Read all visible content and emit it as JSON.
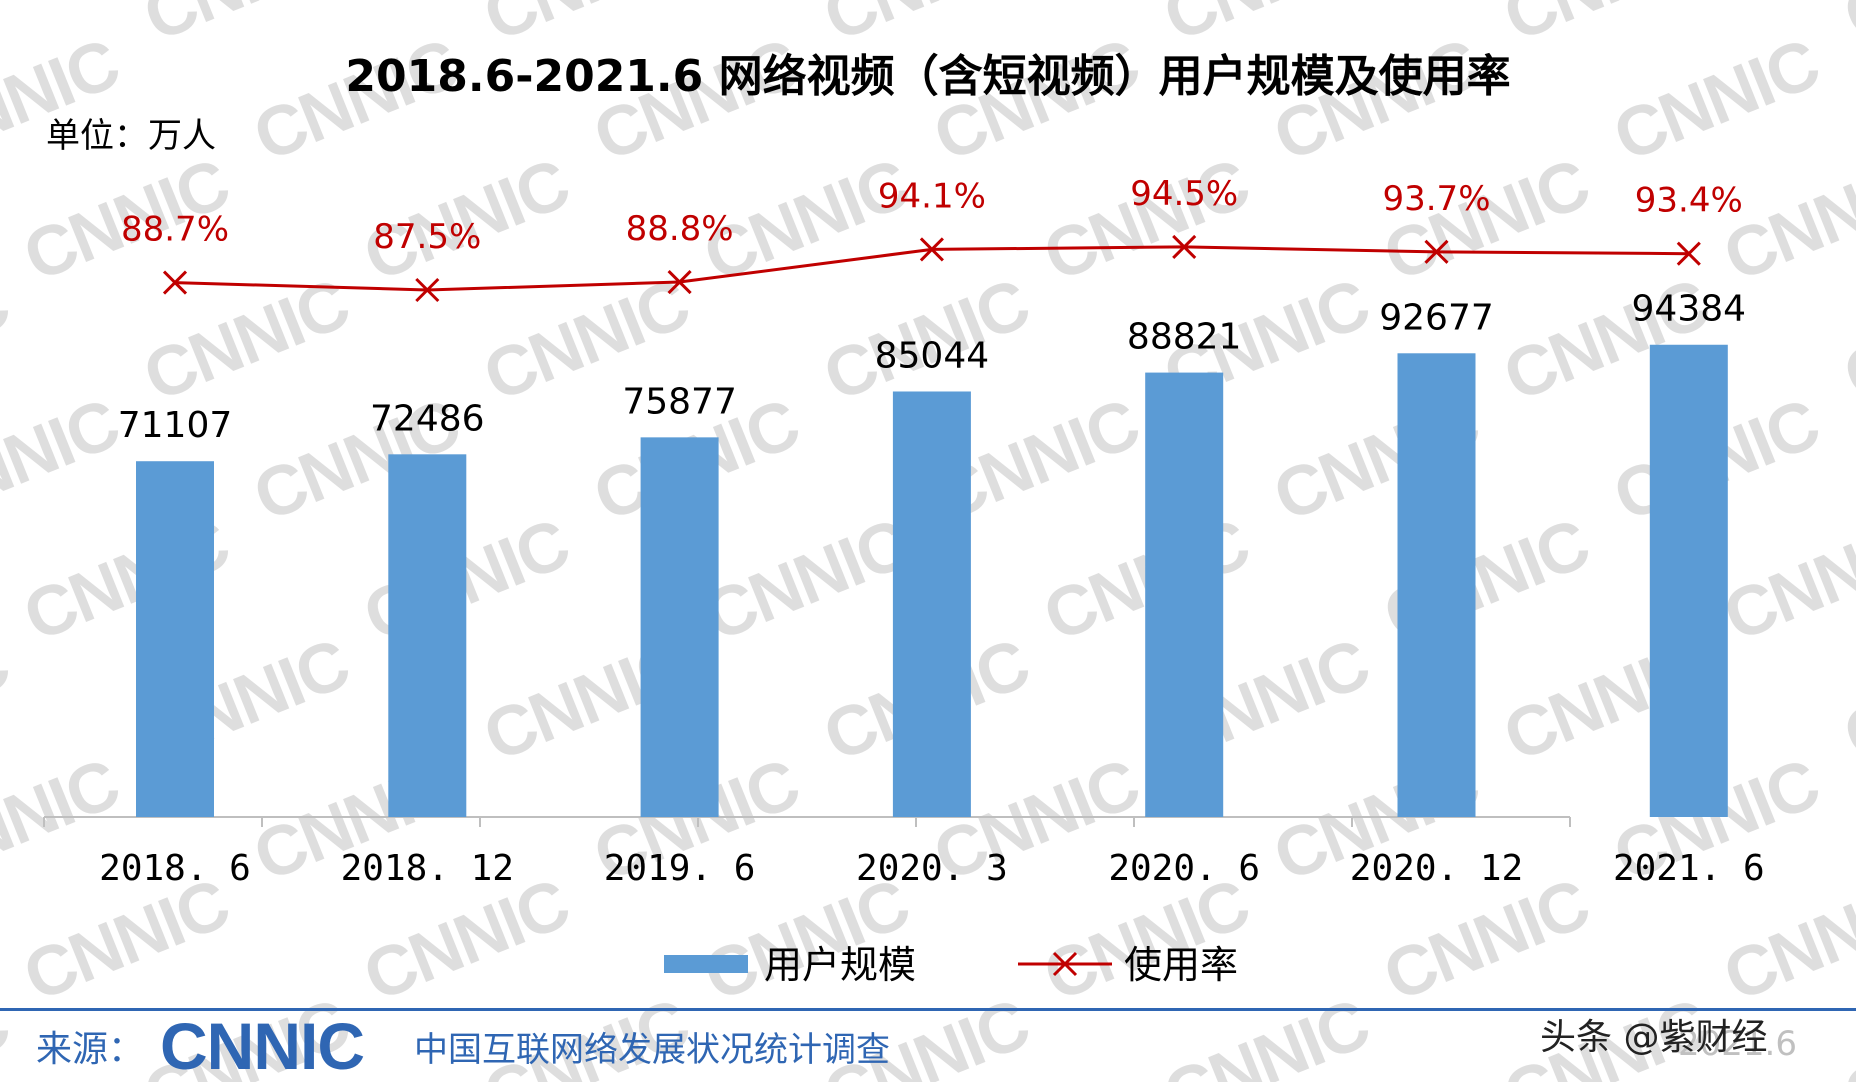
{
  "chart_data": {
    "type": "bar",
    "title": "2018.6-2021.6 网络视频（含短视频）用户规模及使用率",
    "unit": "单位：万人",
    "categories": [
      "2018. 6",
      "2018. 12",
      "2019. 6",
      "2020. 3",
      "2020. 6",
      "2020. 12",
      "2021. 6"
    ],
    "series": [
      {
        "name": "用户规模",
        "type": "bar",
        "color": "#5b9bd5",
        "values": [
          71107,
          72486,
          75877,
          85044,
          88821,
          92677,
          94384
        ],
        "labels": [
          "71107",
          "72486",
          "75877",
          "85044",
          "88821",
          "92677",
          "94384"
        ]
      },
      {
        "name": "使用率",
        "type": "line",
        "color": "#c00000",
        "marker": "x",
        "values": [
          88.7,
          87.5,
          88.8,
          94.1,
          94.5,
          93.7,
          93.4
        ],
        "labels": [
          "88.7%",
          "87.5%",
          "88.8%",
          "94.1%",
          "94.5%",
          "93.7%",
          "93.4%"
        ]
      }
    ],
    "ylim": [
      0,
      100000
    ],
    "legend": "bottom",
    "grid": false
  },
  "footer": {
    "source_label": "来源：",
    "logo_text": "CNNIC",
    "survey_name": "中国互联网络发展状况统计调查",
    "date": "2021.6",
    "credit": "头条 @紫财经"
  },
  "watermark": "CNNIC"
}
